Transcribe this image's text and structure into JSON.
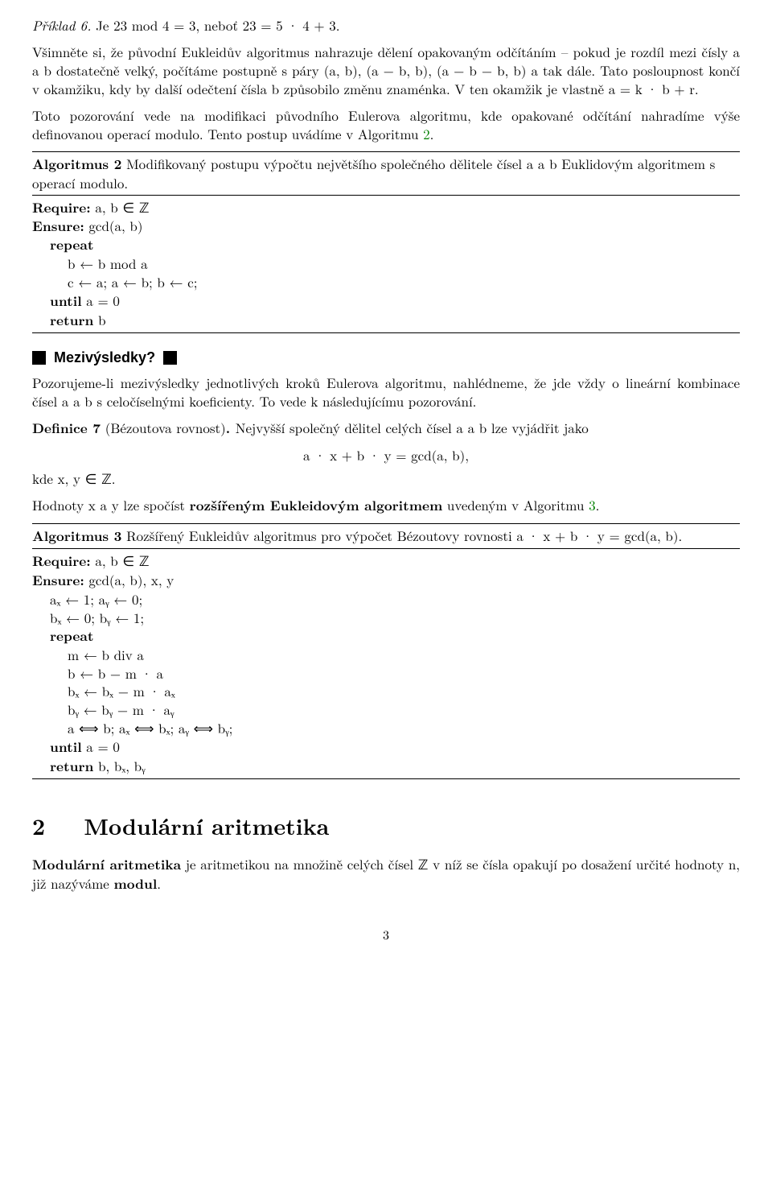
{
  "ex6": {
    "label": "Příklad 6.",
    "text": "Je 23 mod 4 = 3, neboť 23 = 5 · 4 + 3."
  },
  "para1": "Všimněte si, že původní Eukleidův algoritmus nahrazuje dělení opakovaným odčítáním – pokud je rozdíl mezi čísly a a b dostatečně velký, počítáme postupně s páry (a, b), (a − b, b), (a − b − b, b) a tak dále. Tato posloupnost končí v okamžiku, kdy by další odečtení čísla b způsobilo změnu znaménka. V ten okamžik je vlastně a = k · b + r.",
  "para2_a": "Toto pozorování vede na modifikaci původního Eulerova algoritmu, kde opakované odčítání nahradíme výše definovanou operací modulo. Tento postup uvádíme v Algoritmu ",
  "para2_link": "2",
  "para2_b": ".",
  "algo2": {
    "title_a": "Algoritmus 2",
    "title_b": " Modifikovaný postupu výpočtu největšího společného dělitele čísel a a b Euklidovým algoritmem s operací modulo.",
    "req_label": "Require:",
    "req_val": " a, b ∈ ℤ",
    "ens_label": "Ensure:",
    "ens_val": " gcd(a, b)",
    "l1": "repeat",
    "l2": "b ← b mod a",
    "l3": "c ← a; a ← b; b ← c;",
    "l4_a": "until",
    "l4_b": " a = 0",
    "l5_a": "return",
    "l5_b": "  b"
  },
  "mezihead": "Mezivýsledky?",
  "para3": "Pozorujeme-li mezivýsledky jednotlivých kroků Eulerova algoritmu, nahlédneme, že jde vždy o lineární kombinace čísel a a b s celočíselnými koeficienty. To vede k následujícímu pozorování.",
  "def7": {
    "label": "Definice 7",
    "paren": " (Bézoutova rovnost)",
    "dot": ". ",
    "text": "Nejvyšší společný dělitel celých čísel a a b lze vyjádřit jako"
  },
  "eq": "a · x + b · y = gcd(a, b),",
  "kde": "kde x, y ∈ ℤ.",
  "para4_a": "Hodnoty x a y lze spočíst ",
  "para4_b": "rozšířeným Eukleidovým algoritmem",
  "para4_c": " uvedeným v Algoritmu ",
  "para4_link": "3",
  "para4_d": ".",
  "algo3": {
    "title_a": "Algoritmus 3",
    "title_b": " Rozšířený Eukleidův algoritmus pro výpočet Bézoutovy rovnosti a · x + b · y = gcd(a, b).",
    "req_label": "Require:",
    "req_val": " a, b ∈ ℤ",
    "ens_label": "Ensure:",
    "ens_val": " gcd(a, b), x, y",
    "l1": "aₓ ← 1; aᵧ ← 0;",
    "l2": "bₓ ← 0; bᵧ ← 1;",
    "l3": "repeat",
    "l4": "m ← b div a",
    "l5": "b ← b − m · a",
    "l6": "bₓ ← bₓ − m · aₓ",
    "l7": "bᵧ ← bᵧ − m · aᵧ",
    "l8": "a ⟺ b; aₓ ⟺ bₓ; aᵧ ⟺ bᵧ;",
    "l9_a": "until",
    "l9_b": " a = 0",
    "l10_a": "return",
    "l10_b": "  b, bₓ, bᵧ"
  },
  "section": {
    "num": "2",
    "title": "Modulární aritmetika"
  },
  "para5_a": "Modulární aritmetika",
  "para5_b": " je aritmetikou na množině celých čísel ℤ v níž se čísla opakují po dosažení určité hodnoty n, již nazýváme ",
  "para5_c": "modul",
  "para5_d": ".",
  "pagenum": "3"
}
